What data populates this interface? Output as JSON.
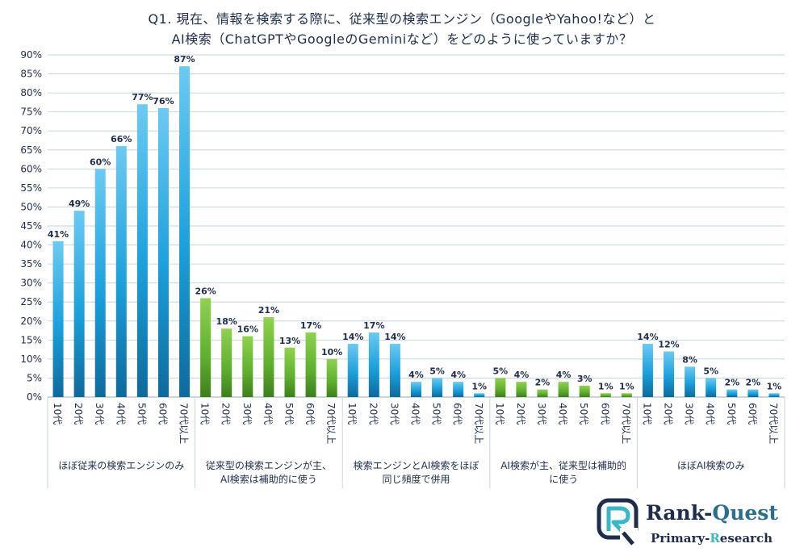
{
  "title_lines": [
    "Q1. 現在、情報を検索する際に、従来型の検索エンジン（GoogleやYahoo!など）と",
    "AI検索（ChatGPTやGoogleのGeminiなど）をどのように使っていますか？"
  ],
  "colors": {
    "blue": "#1aa0dc",
    "green": "#5fae2e",
    "grid": "#c5d6e3"
  },
  "chart_data": {
    "type": "bar",
    "title": "Q1. 現在、情報を検索する際に、従来型の検索エンジン（GoogleやYahoo!など）とAI検索（ChatGPTやGoogleのGeminiなど）をどのように使っていますか？",
    "y_ticks": [
      "0%",
      "5%",
      "10%",
      "15%",
      "20%",
      "25%",
      "30%",
      "35%",
      "40%",
      "45%",
      "50%",
      "55%",
      "60%",
      "65%",
      "70%",
      "75%",
      "80%",
      "85%",
      "90%"
    ],
    "ylim": [
      0,
      90
    ],
    "grid": true,
    "groups": [
      {
        "label": [
          "ほぼ従来の検索エンジンのみ"
        ],
        "color": "blue",
        "categories": [
          "10代",
          "20代",
          "30代",
          "40代",
          "50代",
          "60代",
          "70代以上"
        ],
        "values": [
          41,
          49,
          60,
          66,
          77,
          76,
          87
        ],
        "labels": [
          "41%",
          "49%",
          "60%",
          "66%",
          "77%",
          "76%",
          "87%"
        ]
      },
      {
        "label": [
          "従来型の検索エンジンが主、",
          "AI検索は補助的に使う"
        ],
        "color": "green",
        "categories": [
          "10代",
          "20代",
          "30代",
          "40代",
          "50代",
          "60代",
          "70代以上"
        ],
        "values": [
          26,
          18,
          16,
          21,
          13,
          17,
          10
        ],
        "labels": [
          "26%",
          "18%",
          "16%",
          "21%",
          "13%",
          "17%",
          "10%"
        ]
      },
      {
        "label": [
          "検索エンジンとAI検索をほぼ",
          "同じ頻度で併用"
        ],
        "color": "blue",
        "categories": [
          "10代",
          "20代",
          "30代",
          "40代",
          "50代",
          "60代",
          "70代以上"
        ],
        "values": [
          14,
          17,
          14,
          4,
          5,
          4,
          1
        ],
        "labels": [
          "14%",
          "17%",
          "14%",
          "4%",
          "5%",
          "4%",
          "1%"
        ]
      },
      {
        "label": [
          "AI検索が主、従来型は補助的",
          "に使う"
        ],
        "color": "green",
        "categories": [
          "10代",
          "20代",
          "30代",
          "40代",
          "50代",
          "60代",
          "70代以上"
        ],
        "values": [
          5,
          4,
          2,
          4,
          3,
          1,
          1
        ],
        "labels": [
          "5%",
          "4%",
          "2%",
          "4%",
          "3%",
          "1%",
          "1%"
        ]
      },
      {
        "label": [
          "ほぼAI検索のみ"
        ],
        "color": "blue",
        "categories": [
          "10代",
          "20代",
          "30代",
          "40代",
          "50代",
          "60代",
          "70代以上"
        ],
        "values": [
          14,
          12,
          8,
          5,
          2,
          2,
          1
        ],
        "labels": [
          "14%",
          "12%",
          "8%",
          "5%",
          "2%",
          "2%",
          "1%"
        ]
      }
    ]
  },
  "logo": {
    "name": "Rank-Quest",
    "name_part1": "Rank-",
    "name_part2": "Quest",
    "subtitle_part1": "Primary-",
    "subtitle_part2": "R",
    "subtitle_part3": "esearch"
  }
}
